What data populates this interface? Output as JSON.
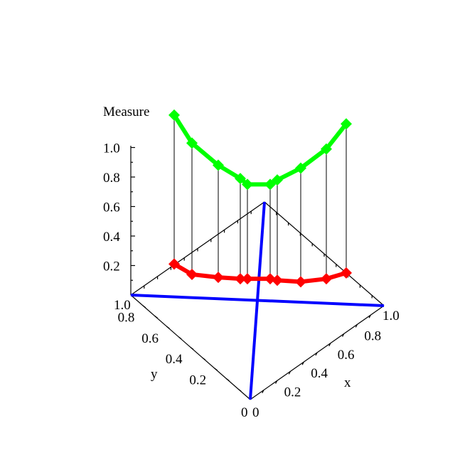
{
  "chart_data": {
    "type": "3d-line",
    "zlabel": "Measure",
    "xlabel": "x",
    "ylabel": "y",
    "z_ticks": [
      "0.2",
      "0.4",
      "0.6",
      "0.8",
      "1.0"
    ],
    "x_ticks": [
      "0",
      "0.2",
      "0.4",
      "0.6",
      "0.8",
      "1.0"
    ],
    "y_ticks": [
      "0",
      "0.2",
      "0.4",
      "0.6",
      "0.8",
      "1.0"
    ],
    "zlim": [
      0,
      1.0
    ],
    "xlim": [
      0,
      1.0
    ],
    "ylim": [
      0,
      1.0
    ],
    "series": [
      {
        "color": "#00ff00",
        "marker": "diamond",
        "values": [
          1.22,
          1.03,
          0.88,
          0.79,
          0.75,
          0.75,
          0.78,
          0.86,
          0.99,
          1.16
        ]
      },
      {
        "color": "#ff0000",
        "marker": "diamond",
        "values": [
          0.21,
          0.14,
          0.12,
          0.11,
          0.11,
          0.11,
          0.1,
          0.09,
          0.11,
          0.15
        ]
      }
    ],
    "reference_lines_color": "#0000ff"
  }
}
